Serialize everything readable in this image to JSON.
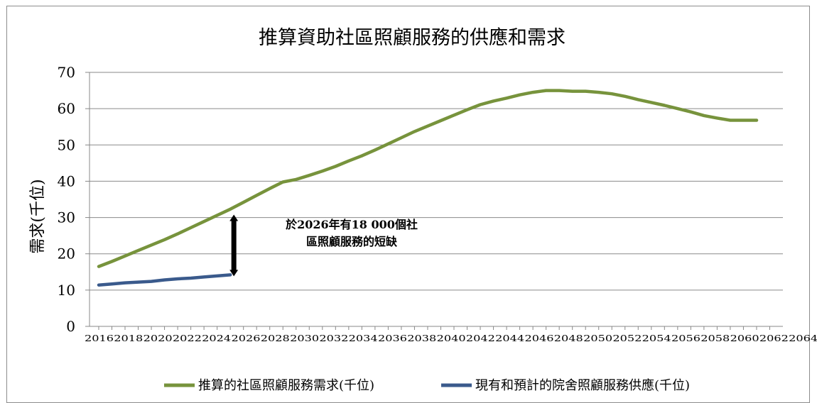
{
  "chart_data": {
    "type": "line",
    "title": "推算資助社區照顧服務的供應和需求",
    "ylabel": "需求(千位)",
    "xlabel": "",
    "ylim": [
      0,
      70
    ],
    "yticks": [
      0,
      10,
      20,
      30,
      40,
      50,
      60,
      70
    ],
    "x_tick_labels": [
      "2016",
      "2018",
      "2020",
      "2022",
      "2024",
      "2026",
      "2028",
      "2030",
      "2032",
      "2034",
      "2036",
      "2038",
      "2040",
      "2042",
      "2044",
      "2046",
      "2048",
      "2050",
      "2052",
      "2054",
      "2056",
      "2058",
      "2060",
      "2062",
      "2064"
    ],
    "grid": true,
    "legend_position": "bottom",
    "series": [
      {
        "name": "推算的社區照顧服務需求(千位)",
        "color": "#77933c",
        "x": [
          2016,
          2017,
          2018,
          2019,
          2020,
          2021,
          2022,
          2023,
          2024,
          2025,
          2026,
          2027,
          2028,
          2029,
          2030,
          2031,
          2032,
          2033,
          2034,
          2035,
          2036,
          2037,
          2038,
          2039,
          2040,
          2041,
          2042,
          2043,
          2044,
          2045,
          2046,
          2047,
          2048,
          2049,
          2050,
          2051,
          2052,
          2053,
          2054,
          2055,
          2056,
          2057,
          2058,
          2059,
          2060,
          2061,
          2062,
          2063,
          2064,
          2065,
          2066
        ],
        "values": [
          16.5,
          17.9,
          19.4,
          20.9,
          22.4,
          23.9,
          25.5,
          27.2,
          28.9,
          30.6,
          32.3,
          34.2,
          36.1,
          38.0,
          39.8,
          40.5,
          41.6,
          42.8,
          44.1,
          45.6,
          47.0,
          48.6,
          50.3,
          52.0,
          53.7,
          55.2,
          56.7,
          58.2,
          59.7,
          61.1,
          62.1,
          62.9,
          63.8,
          64.5,
          65.0,
          65.0,
          64.8,
          64.8,
          64.5,
          64.1,
          63.4,
          62.5,
          61.7,
          60.9,
          60.0,
          59.1,
          58.1,
          57.4,
          56.8,
          56.8,
          56.8
        ]
      },
      {
        "name": "現有和預計的院舍照顧服務供應(千位)",
        "color": "#3a5a8c",
        "x": [
          2016,
          2017,
          2018,
          2019,
          2020,
          2021,
          2022,
          2023,
          2024,
          2025,
          2026
        ],
        "values": [
          11.4,
          11.7,
          12.0,
          12.2,
          12.4,
          12.8,
          13.1,
          13.3,
          13.6,
          13.9,
          14.2
        ]
      }
    ],
    "annotation": {
      "text_line1": "於2026年有18 000個社",
      "text_line2": "區照顧服務的短缺",
      "x": 2026,
      "from": 14.2,
      "to": 30.4
    }
  }
}
